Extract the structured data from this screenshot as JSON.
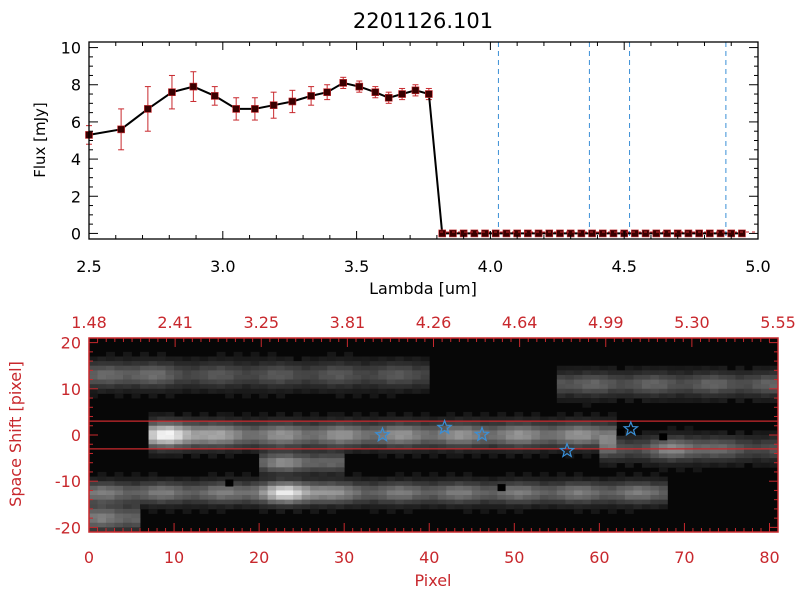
{
  "chart_data": [
    {
      "type": "line",
      "title": "2201126.101",
      "xlabel": "Lambda [um]",
      "ylabel": "Flux [mJy]",
      "xlim": [
        2.5,
        5.0
      ],
      "ylim": [
        -0.3,
        10.3
      ],
      "xticks": [
        "2.5",
        "3.0",
        "3.5",
        "4.0",
        "4.5",
        "5.0"
      ],
      "yticks": [
        "0",
        "2",
        "4",
        "6",
        "8",
        "10"
      ],
      "series": [
        {
          "x": [
            2.5,
            2.62,
            2.72,
            2.81,
            2.89,
            2.97,
            3.05,
            3.12,
            3.19,
            3.26,
            3.33,
            3.39,
            3.45,
            3.51,
            3.57,
            3.62,
            3.67,
            3.72,
            3.77,
            3.82,
            3.86,
            3.9,
            3.94,
            3.98,
            4.02,
            4.06,
            4.1,
            4.14,
            4.18,
            4.22,
            4.26,
            4.3,
            4.34,
            4.38,
            4.42,
            4.46,
            4.5,
            4.54,
            4.58,
            4.62,
            4.66,
            4.7,
            4.74,
            4.78,
            4.82,
            4.86,
            4.9,
            4.94
          ],
          "y": [
            5.3,
            5.6,
            6.7,
            7.6,
            7.9,
            7.4,
            6.7,
            6.7,
            6.9,
            7.1,
            7.4,
            7.6,
            8.1,
            7.9,
            7.6,
            7.3,
            7.5,
            7.7,
            7.5,
            0,
            0,
            0,
            0,
            0,
            0,
            0,
            0,
            0,
            0,
            0,
            0,
            0,
            0,
            0,
            0,
            0,
            0,
            0,
            0,
            0,
            0,
            0,
            0,
            0,
            0,
            0,
            0,
            0
          ],
          "yerr": [
            0.5,
            1.1,
            1.2,
            0.9,
            0.8,
            0.5,
            0.6,
            0.6,
            0.7,
            0.6,
            0.5,
            0.4,
            0.3,
            0.3,
            0.3,
            0.3,
            0.3,
            0.3,
            0.3,
            0,
            0,
            0,
            0,
            0,
            0,
            0,
            0,
            0,
            0,
            0,
            0,
            0,
            0,
            0,
            0,
            0,
            0,
            0,
            0,
            0,
            0,
            0,
            0,
            0,
            0,
            0,
            0,
            0
          ]
        }
      ],
      "vertical_lines_x": [
        4.03,
        4.37,
        4.52,
        4.88
      ],
      "vertical_line_color": "#3a8fd6",
      "marker_color": "#3a0000",
      "errorbar_color": "#c8282d",
      "grid": false
    },
    {
      "type": "heatmap",
      "xlabel": "Pixel",
      "ylabel": "Space Shift [pixel]",
      "xlim": [
        0,
        81
      ],
      "ylim": [
        -21,
        21
      ],
      "xticks": [
        "0",
        "10",
        "20",
        "30",
        "40",
        "50",
        "60",
        "70",
        "80"
      ],
      "yticks": [
        "-20",
        "-10",
        "0",
        "10",
        "20"
      ],
      "top_axis_ticks": [
        "1.48",
        "2.41",
        "3.25",
        "3.81",
        "4.26",
        "4.64",
        "4.99",
        "5.30",
        "5.55"
      ],
      "axis_color": "#c8282d",
      "extraction_lines_y": [
        3,
        -3
      ],
      "star_markers": [
        {
          "x": 34.5,
          "y": 0
        },
        {
          "x": 41.8,
          "y": 1.6
        },
        {
          "x": 46.2,
          "y": 0.1
        },
        {
          "x": 56.2,
          "y": -3.4
        },
        {
          "x": 63.7,
          "y": 1.3
        }
      ],
      "star_color": "#3a8fd6",
      "bright_features": [
        {
          "x0": 7,
          "x1": 62,
          "y": 0,
          "peak_x": 10,
          "width": 2.5,
          "peak": 1.0,
          "tail": 0.55
        },
        {
          "x0": 0,
          "x1": 68,
          "y": -12.5,
          "peak_x": 24,
          "width": 2.2,
          "peak": 0.95,
          "tail": 0.45
        },
        {
          "x0": 55,
          "x1": 81,
          "y": 11,
          "peak_x": 50,
          "width": 2.4,
          "peak": 0.7,
          "tail": 0.35
        },
        {
          "x0": 0,
          "x1": 40,
          "y": 13,
          "peak_x": 5,
          "width": 2.6,
          "peak": 0.45,
          "tail": 0.3
        },
        {
          "x0": 20,
          "x1": 30,
          "y": -6,
          "peak_x": 24,
          "width": 2.0,
          "peak": 0.55,
          "tail": 0.3
        },
        {
          "x0": 0,
          "x1": 6,
          "y": -18,
          "peak_x": 3,
          "width": 2.5,
          "peak": 0.5,
          "tail": 0.3
        },
        {
          "x0": 60,
          "x1": 81,
          "y": -3,
          "peak_x": 70,
          "width": 2.4,
          "peak": 0.55,
          "tail": 0.3
        }
      ],
      "dark_pixels": [
        {
          "x": 16.5,
          "y": -10.5
        },
        {
          "x": 48.5,
          "y": -11.5
        },
        {
          "x": 67.5,
          "y": -0.5
        },
        {
          "x": 62.5,
          "y": 0.5
        }
      ]
    }
  ]
}
